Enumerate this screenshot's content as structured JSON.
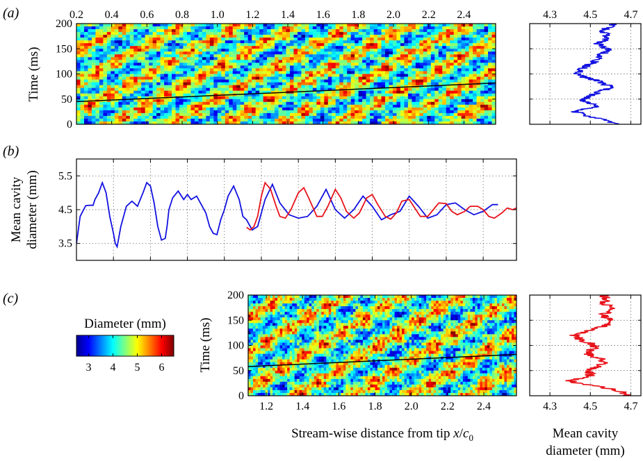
{
  "colors": {
    "red_series": "#e8121a",
    "blue_series": "#1111e0",
    "black_line": "#000000",
    "colormap": [
      "#00008f",
      "#0000ff",
      "#0080ff",
      "#00ffff",
      "#80ff80",
      "#ffff00",
      "#ff8000",
      "#ff0000",
      "#800000"
    ]
  },
  "panel_labels": {
    "a": "(a)",
    "b": "(b)",
    "c": "(c)"
  },
  "colorbar": {
    "title": "Diameter (mm)",
    "range": [
      2.5,
      6.5
    ],
    "ticks": [
      "3",
      "4",
      "5",
      "6"
    ],
    "tick_values": [
      3,
      4,
      5,
      6
    ]
  },
  "bottom_xlabel": {
    "text": "Stream-wise distance from tip ",
    "var": "x",
    "slash": "/",
    "sub_base": "c",
    "sub_index": "0"
  },
  "right_xlabel": {
    "line1": "Mean cavity",
    "line2": "diameter (mm)"
  },
  "chart_data": [
    {
      "id": "a-heatmap",
      "type": "heatmap",
      "xlim": [
        0.2,
        2.58
      ],
      "ylim": [
        0,
        200
      ],
      "xticks": [
        "0.2",
        "0.4",
        "0.6",
        "0.8",
        "1.0",
        "1.2",
        "1.4",
        "1.6",
        "1.8",
        "2.0",
        "2.2",
        "2.4"
      ],
      "xtick_values": [
        0.2,
        0.4,
        0.6,
        0.8,
        1.0,
        1.2,
        1.4,
        1.6,
        1.8,
        2.0,
        2.2,
        2.4
      ],
      "x_axis_position": "top",
      "yticks": [
        "0",
        "50",
        "100",
        "150",
        "200"
      ],
      "ytick_values": [
        0,
        50,
        100,
        150,
        200
      ],
      "ylabel": "Time (ms)",
      "value_range": [
        2.5,
        6.5
      ],
      "black_line": {
        "x": [
          0.2,
          2.58
        ],
        "y": [
          45,
          82
        ]
      }
    },
    {
      "id": "a-profile",
      "type": "line",
      "xlim": [
        4.2,
        4.75
      ],
      "ylim": [
        0,
        200
      ],
      "xticks": [
        "4.3",
        "4.5",
        "4.7"
      ],
      "xtick_values": [
        4.3,
        4.5,
        4.7
      ],
      "x_axis_position": "top",
      "grid": true,
      "series": [
        {
          "color": "#1111e0",
          "y": [
            0,
            5,
            10,
            15,
            20,
            25,
            30,
            35,
            40,
            45,
            50,
            55,
            60,
            65,
            70,
            75,
            80,
            85,
            90,
            95,
            100,
            105,
            110,
            115,
            120,
            125,
            130,
            135,
            140,
            145,
            150,
            155,
            160,
            165,
            170,
            175,
            180,
            185,
            190,
            195,
            200
          ],
          "x": [
            4.63,
            4.6,
            4.56,
            4.5,
            4.46,
            4.43,
            4.46,
            4.52,
            4.52,
            4.48,
            4.46,
            4.5,
            4.52,
            4.54,
            4.58,
            4.6,
            4.57,
            4.55,
            4.5,
            4.46,
            4.44,
            4.44,
            4.46,
            4.48,
            4.5,
            4.52,
            4.55,
            4.54,
            4.56,
            4.58,
            4.58,
            4.56,
            4.54,
            4.56,
            4.58,
            4.58,
            4.57,
            4.56,
            4.58,
            4.6,
            4.62
          ]
        }
      ]
    },
    {
      "id": "b-line",
      "type": "line",
      "xlim": [
        0.2,
        2.58
      ],
      "ylim": [
        3.0,
        6.0
      ],
      "yticks": [
        "3.5",
        "4.5",
        "5.5"
      ],
      "ytick_values": [
        3.5,
        4.5,
        5.5
      ],
      "ylabel_line1": "Mean cavity",
      "ylabel_line2": "diameter (mm)",
      "grid": true,
      "series": [
        {
          "color": "#1111e0",
          "x": [
            0.2,
            0.22,
            0.25,
            0.27,
            0.29,
            0.3,
            0.32,
            0.34,
            0.36,
            0.38,
            0.4,
            0.41,
            0.42,
            0.44,
            0.47,
            0.5,
            0.53,
            0.56,
            0.58,
            0.6,
            0.62,
            0.64,
            0.66,
            0.68,
            0.69,
            0.7,
            0.72,
            0.75,
            0.78,
            0.8,
            0.82,
            0.85,
            0.88,
            0.9,
            0.92,
            0.94,
            0.96,
            0.98,
            1.0,
            1.02,
            1.05,
            1.08,
            1.1,
            1.12,
            1.15,
            1.18,
            1.22,
            1.26,
            1.3,
            1.35,
            1.4,
            1.45,
            1.5,
            1.55,
            1.6,
            1.65,
            1.7,
            1.75,
            1.8,
            1.85,
            1.9,
            1.95,
            2.0,
            2.05,
            2.1,
            2.15,
            2.2,
            2.25,
            2.3,
            2.35,
            2.4,
            2.45,
            2.48
          ],
          "y": [
            3.5,
            4.3,
            4.62,
            4.63,
            4.63,
            4.8,
            5.0,
            5.3,
            5.0,
            4.3,
            3.8,
            3.5,
            3.4,
            4.0,
            4.6,
            4.75,
            4.6,
            5.0,
            5.3,
            5.2,
            4.7,
            4.0,
            3.6,
            3.65,
            4.0,
            4.5,
            4.85,
            5.05,
            4.8,
            4.95,
            4.8,
            4.9,
            4.6,
            4.4,
            4.0,
            3.8,
            3.76,
            4.2,
            4.5,
            4.9,
            5.2,
            4.8,
            4.3,
            4.2,
            3.9,
            4.0,
            4.8,
            5.25,
            4.7,
            4.35,
            4.25,
            4.3,
            4.6,
            5.1,
            4.5,
            4.25,
            4.5,
            4.9,
            4.6,
            4.2,
            4.35,
            4.45,
            4.9,
            4.6,
            4.25,
            4.35,
            4.65,
            4.7,
            4.5,
            4.35,
            4.45,
            4.65,
            4.65
          ]
        },
        {
          "color": "#e8121a",
          "x": [
            1.12,
            1.14,
            1.16,
            1.18,
            1.2,
            1.22,
            1.25,
            1.28,
            1.3,
            1.33,
            1.36,
            1.4,
            1.43,
            1.46,
            1.5,
            1.53,
            1.56,
            1.6,
            1.63,
            1.66,
            1.7,
            1.73,
            1.77,
            1.8,
            1.83,
            1.87,
            1.9,
            1.93,
            1.96,
            2.0,
            2.03,
            2.06,
            2.1,
            2.13,
            2.16,
            2.2,
            2.23,
            2.26,
            2.3,
            2.33,
            2.37,
            2.4,
            2.43,
            2.46,
            2.5,
            2.53,
            2.56,
            2.58
          ],
          "y": [
            3.98,
            3.9,
            4.0,
            4.3,
            4.9,
            5.3,
            5.1,
            4.6,
            4.3,
            4.25,
            4.5,
            5.0,
            5.15,
            4.8,
            4.3,
            4.3,
            4.6,
            5.1,
            4.85,
            4.45,
            4.25,
            4.4,
            4.85,
            4.95,
            4.65,
            4.3,
            4.22,
            4.4,
            4.75,
            4.8,
            4.55,
            4.3,
            4.3,
            4.5,
            4.7,
            4.68,
            4.45,
            4.35,
            4.45,
            4.6,
            4.6,
            4.5,
            4.3,
            4.25,
            4.4,
            4.55,
            4.5,
            4.55
          ]
        }
      ]
    },
    {
      "id": "c-heatmap",
      "type": "heatmap",
      "xlim": [
        1.1,
        2.58
      ],
      "ylim": [
        0,
        200
      ],
      "xticks": [
        "1.2",
        "1.4",
        "1.6",
        "1.8",
        "2.0",
        "2.2",
        "2.4"
      ],
      "xtick_values": [
        1.2,
        1.4,
        1.6,
        1.8,
        2.0,
        2.2,
        2.4
      ],
      "yticks": [
        "0",
        "50",
        "100",
        "150",
        "200"
      ],
      "ytick_values": [
        0,
        50,
        100,
        150,
        200
      ],
      "ylabel": "Time (ms)",
      "value_range": [
        2.5,
        6.5
      ],
      "black_line": {
        "x": [
          1.1,
          2.58
        ],
        "y": [
          58,
          82
        ]
      }
    },
    {
      "id": "c-profile",
      "type": "line",
      "xlim": [
        4.2,
        4.75
      ],
      "ylim": [
        0,
        200
      ],
      "xticks": [
        "4.3",
        "4.5",
        "4.7"
      ],
      "xtick_values": [
        4.3,
        4.5,
        4.7
      ],
      "grid": true,
      "series": [
        {
          "color": "#e8121a",
          "y": [
            0,
            5,
            10,
            15,
            20,
            25,
            30,
            35,
            40,
            45,
            50,
            55,
            60,
            65,
            70,
            75,
            80,
            85,
            90,
            95,
            100,
            105,
            110,
            115,
            120,
            125,
            130,
            135,
            140,
            145,
            150,
            155,
            160,
            165,
            170,
            175,
            180,
            185,
            190,
            195,
            200
          ],
          "x": [
            4.68,
            4.66,
            4.64,
            4.58,
            4.52,
            4.44,
            4.4,
            4.46,
            4.5,
            4.5,
            4.48,
            4.52,
            4.54,
            4.56,
            4.56,
            4.54,
            4.5,
            4.48,
            4.5,
            4.52,
            4.52,
            4.5,
            4.46,
            4.44,
            4.42,
            4.46,
            4.5,
            4.54,
            4.58,
            4.6,
            4.6,
            4.58,
            4.56,
            4.58,
            4.6,
            4.6,
            4.58,
            4.56,
            4.58,
            4.58,
            4.56
          ]
        }
      ]
    }
  ]
}
